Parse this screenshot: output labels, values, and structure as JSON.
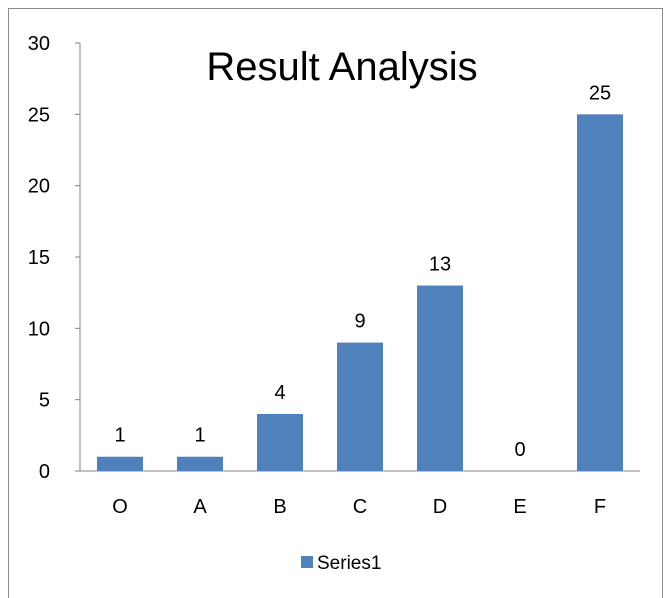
{
  "chart_data": {
    "type": "bar",
    "title": "Result Analysis",
    "categories": [
      "O",
      "A",
      "B",
      "C",
      "D",
      "E",
      "F"
    ],
    "series": [
      {
        "name": "Series1",
        "values": [
          1,
          1,
          4,
          9,
          13,
          0,
          25
        ],
        "color": "#4f81bd"
      }
    ],
    "ylim": [
      0,
      30
    ],
    "yticks": [
      0,
      5,
      10,
      15,
      20,
      25,
      30
    ],
    "data_labels": true,
    "grid": false,
    "legend": "bottom"
  }
}
